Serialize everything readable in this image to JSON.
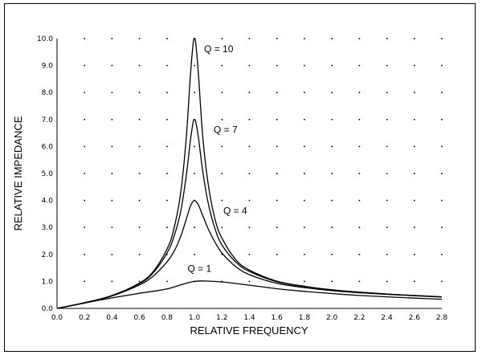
{
  "chart_data": {
    "type": "line",
    "title": "",
    "xlabel": "RELATIVE FREQUENCY",
    "ylabel": "RELATIVE IMPEDANCE",
    "xlim": [
      0.0,
      2.8
    ],
    "ylim": [
      0.0,
      10.0
    ],
    "x_ticks": [
      "0.0",
      "0.2",
      "0.4",
      "0.6",
      "0.8",
      "1.0",
      "1.2",
      "1.4",
      "1.6",
      "1.8",
      "2.0",
      "2.2",
      "2.4",
      "2.6",
      "2.8"
    ],
    "y_ticks": [
      "0.0",
      "1.0",
      "2.0",
      "3.0",
      "4.0",
      "5.0",
      "6.0",
      "7.0",
      "8.0",
      "9.0",
      "10.0"
    ],
    "grid": "dotted",
    "series": [
      {
        "name": "Q = 10",
        "x": [
          0.0,
          0.2,
          0.4,
          0.6,
          0.7,
          0.8,
          0.85,
          0.9,
          0.94,
          0.97,
          0.99,
          1.0,
          1.01,
          1.03,
          1.06,
          1.1,
          1.15,
          1.2,
          1.3,
          1.4,
          1.6,
          1.8,
          2.0,
          2.2,
          2.4,
          2.6,
          2.8
        ],
        "values": [
          0.0,
          0.21,
          0.48,
          0.94,
          1.37,
          2.2,
          2.94,
          4.3,
          6.3,
          8.6,
          9.8,
          10.0,
          9.8,
          8.6,
          6.4,
          4.6,
          3.3,
          2.6,
          1.81,
          1.42,
          1.01,
          0.82,
          0.69,
          0.6,
          0.53,
          0.48,
          0.43
        ]
      },
      {
        "name": "Q = 7",
        "x": [
          0.0,
          0.2,
          0.4,
          0.6,
          0.7,
          0.8,
          0.85,
          0.9,
          0.94,
          0.97,
          0.99,
          1.0,
          1.01,
          1.03,
          1.06,
          1.1,
          1.15,
          1.2,
          1.3,
          1.4,
          1.6,
          1.8,
          2.0,
          2.2,
          2.4,
          2.6,
          2.8
        ],
        "values": [
          0.0,
          0.21,
          0.47,
          0.92,
          1.32,
          2.05,
          2.65,
          3.6,
          4.9,
          6.2,
          6.9,
          7.0,
          6.9,
          6.3,
          5.1,
          3.9,
          2.95,
          2.35,
          1.72,
          1.37,
          0.99,
          0.81,
          0.68,
          0.6,
          0.53,
          0.48,
          0.43
        ]
      },
      {
        "name": "Q = 4",
        "x": [
          0.0,
          0.2,
          0.4,
          0.6,
          0.7,
          0.8,
          0.85,
          0.9,
          0.94,
          0.97,
          0.99,
          1.0,
          1.01,
          1.03,
          1.06,
          1.1,
          1.15,
          1.2,
          1.3,
          1.4,
          1.6,
          1.8,
          2.0,
          2.2,
          2.4,
          2.6,
          2.8
        ],
        "values": [
          0.0,
          0.2,
          0.46,
          0.87,
          1.2,
          1.72,
          2.1,
          2.67,
          3.3,
          3.78,
          3.97,
          4.0,
          3.97,
          3.82,
          3.45,
          2.95,
          2.45,
          2.05,
          1.55,
          1.25,
          0.93,
          0.77,
          0.66,
          0.58,
          0.52,
          0.47,
          0.42
        ]
      },
      {
        "name": "Q = 1",
        "x": [
          0.0,
          0.2,
          0.4,
          0.6,
          0.8,
          1.0,
          1.2,
          1.4,
          1.6,
          1.8,
          2.0,
          2.2,
          2.4,
          2.6,
          2.8
        ],
        "values": [
          0.0,
          0.2,
          0.39,
          0.56,
          0.72,
          1.0,
          0.98,
          0.86,
          0.73,
          0.63,
          0.55,
          0.48,
          0.43,
          0.38,
          0.34
        ]
      }
    ],
    "annotations": [
      {
        "text": "Q = 10",
        "x": 1.07,
        "y": 9.5
      },
      {
        "text": "Q = 7",
        "x": 1.14,
        "y": 6.5
      },
      {
        "text": "Q = 4",
        "x": 1.21,
        "y": 3.5
      },
      {
        "text": "Q = 1",
        "x": 0.95,
        "y": 1.35
      }
    ]
  }
}
